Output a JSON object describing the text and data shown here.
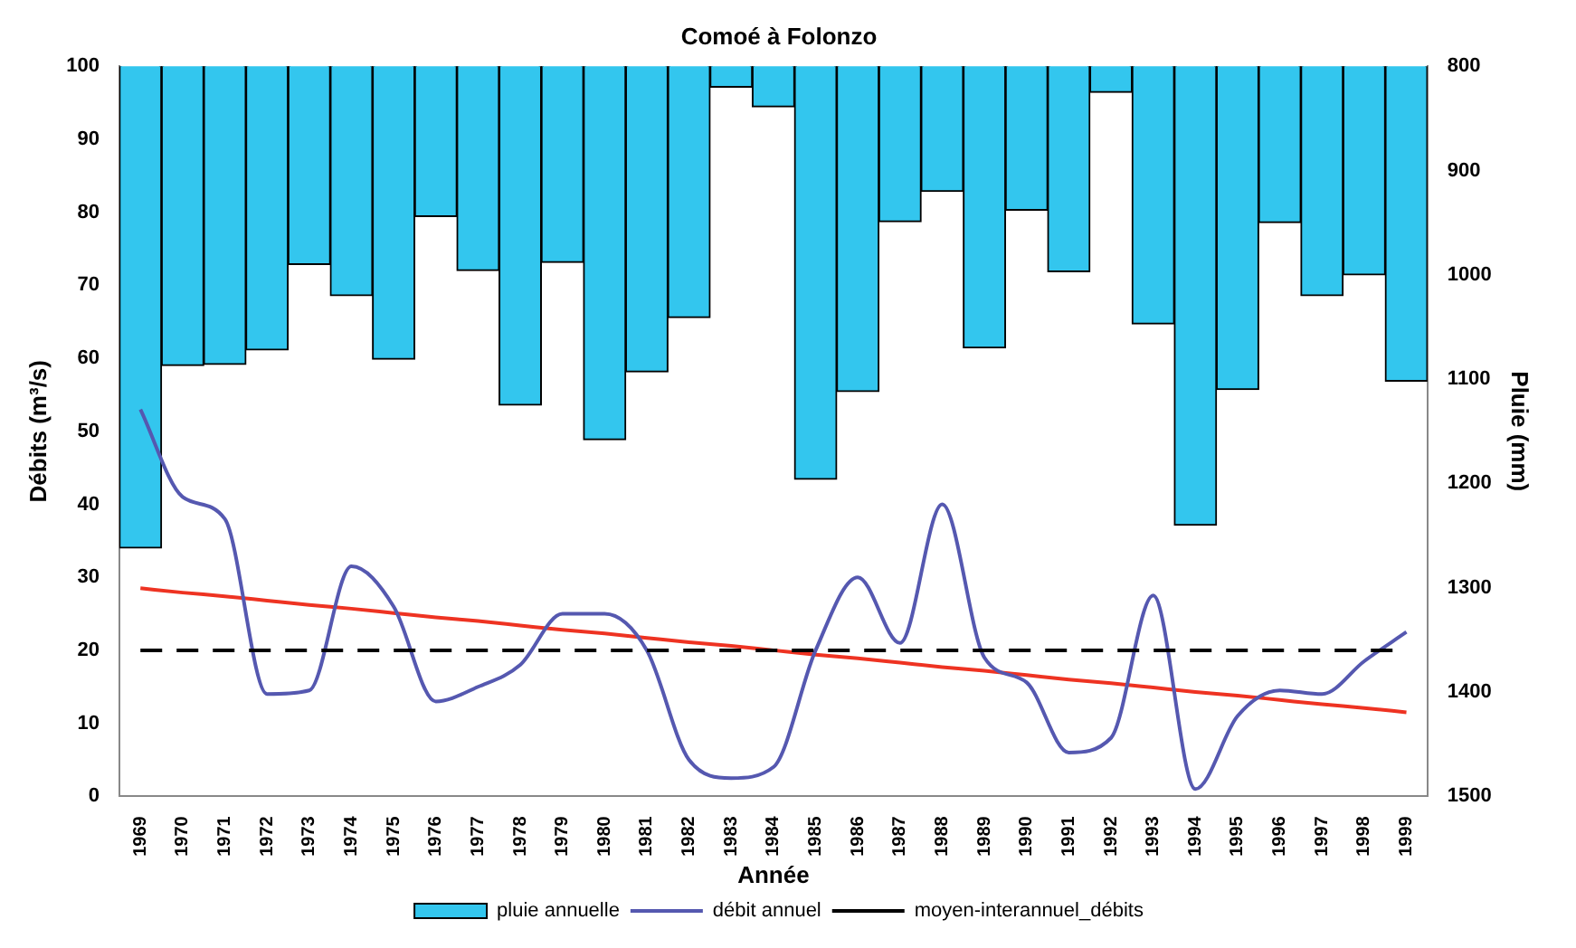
{
  "chart_data": {
    "type": "bar",
    "title": "Comoé à Folonzo",
    "xlabel": "Année",
    "ylabel": "Débits (m³/s)",
    "y2label": "Pluie (mm)",
    "categories": [
      "1969",
      "1970",
      "1971",
      "1972",
      "1973",
      "1974",
      "1975",
      "1976",
      "1977",
      "1978",
      "1979",
      "1980",
      "1981",
      "1982",
      "1983",
      "1984",
      "1985",
      "1986",
      "1987",
      "1988",
      "1989",
      "1990",
      "1991",
      "1992",
      "1993",
      "1994",
      "1995",
      "1996",
      "1997",
      "1998",
      "1999"
    ],
    "series": [
      {
        "name": "pluie annuelle",
        "axis": "y2",
        "color": "#33c6ee",
        "values": [
          1262,
          1087,
          1086,
          1072,
          990,
          1020,
          1081,
          944,
          996,
          1125,
          988,
          1158,
          1093,
          1041,
          820,
          839,
          1196,
          1112,
          949,
          920,
          1070,
          938,
          997,
          825,
          1047,
          1240,
          1110,
          950,
          1020,
          1000,
          1102
        ]
      },
      {
        "name": "débit annuel",
        "type": "line",
        "color": "#5558b0",
        "values": [
          53,
          41,
          38,
          14,
          14.5,
          31.5,
          26,
          13,
          15,
          18,
          25,
          25,
          20,
          5,
          2.5,
          4,
          20,
          30,
          21,
          40,
          19,
          15.6,
          6,
          8,
          27.5,
          1,
          11,
          14.5,
          14,
          18.5,
          22.5
        ]
      },
      {
        "type": "line",
        "color": "#ee3322",
        "values": [
          28.5,
          27.9,
          27.4,
          26.8,
          26.2,
          25.7,
          25.1,
          24.5,
          24.0,
          23.4,
          22.8,
          22.3,
          21.7,
          21.1,
          20.6,
          20.0,
          19.4,
          18.9,
          18.3,
          17.7,
          17.2,
          16.6,
          16.0,
          15.5,
          14.9,
          14.3,
          13.8,
          13.2,
          12.6,
          12.1,
          11.5
        ]
      }
    ],
    "ref_lines": [
      {
        "axis": "y",
        "value": 20,
        "label": "moyen-interannuel_débits",
        "color": "#000000",
        "line_style": "dashed"
      }
    ],
    "ylim": [
      0,
      100
    ],
    "yticks": [
      0,
      10,
      20,
      30,
      40,
      50,
      60,
      70,
      80,
      90,
      100
    ],
    "y2lim": [
      1500,
      800
    ],
    "y2ticks": [
      800,
      900,
      1000,
      1100,
      1200,
      1300,
      1400,
      1500
    ],
    "grid": false,
    "legend": "bottom",
    "marker": "none"
  }
}
